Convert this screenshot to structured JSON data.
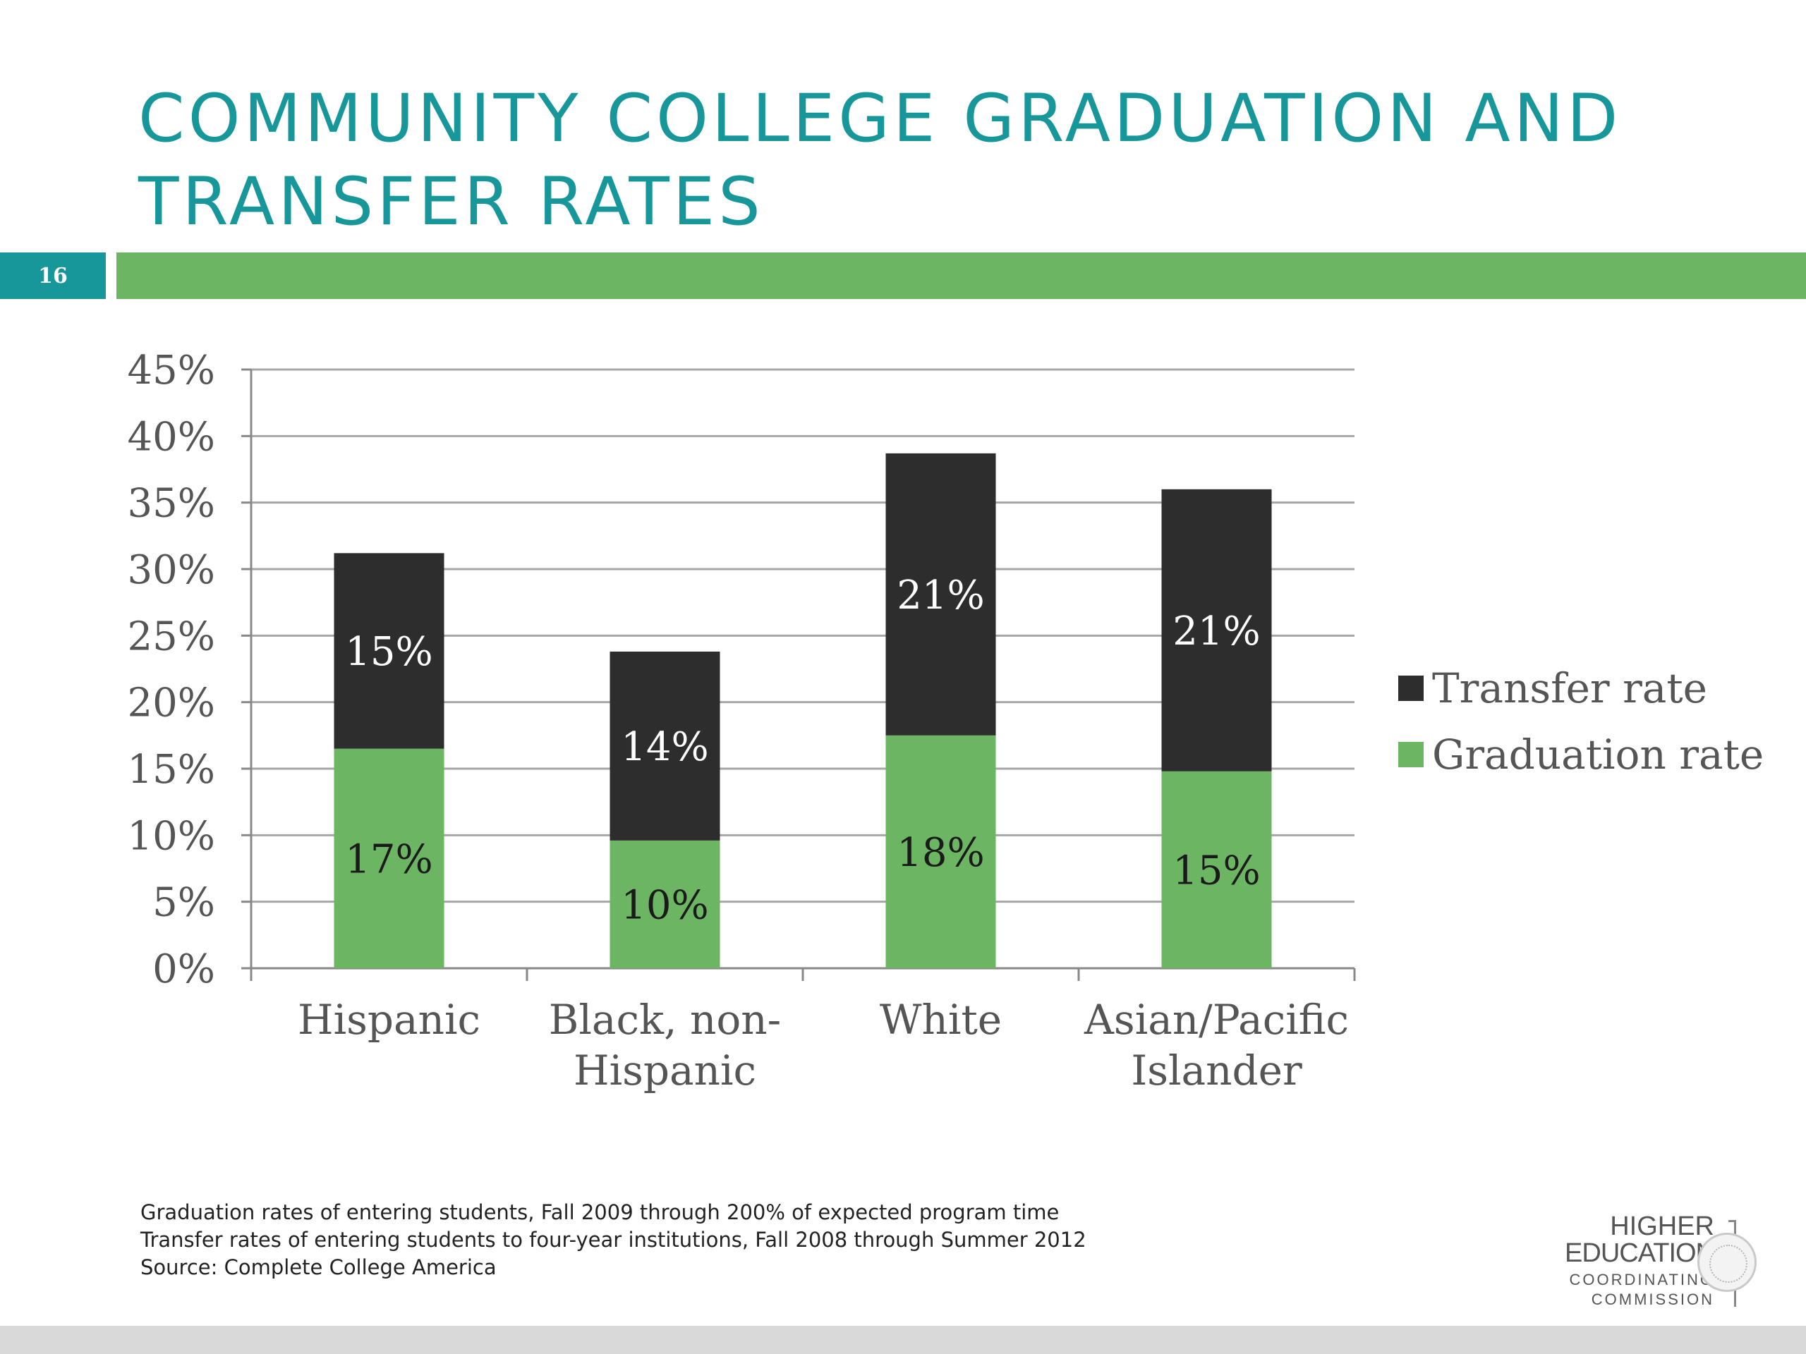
{
  "slide": {
    "title_line1": "COMMUNITY COLLEGE GRADUATION AND",
    "title_line2": "TRANSFER RATES",
    "page_number": "16",
    "accent_color": "#17979a",
    "bar_color": "#6bb563"
  },
  "chart_data": {
    "type": "bar",
    "stacked": true,
    "categories": [
      [
        "Hispanic"
      ],
      [
        "Black, non-",
        "Hispanic"
      ],
      [
        "White"
      ],
      [
        "Asian/Pacific",
        "Islander"
      ]
    ],
    "series": [
      {
        "name": "Graduation rate",
        "color": "#6bb563",
        "values": [
          16.5,
          9.6,
          17.5,
          14.8
        ],
        "labels": [
          "17%",
          "10%",
          "18%",
          "15%"
        ],
        "label_color": "#1a1a1a"
      },
      {
        "name": "Transfer rate",
        "color": "#2d2d2d",
        "values": [
          14.7,
          14.2,
          21.2,
          21.2
        ],
        "labels": [
          "15%",
          "14%",
          "21%",
          "21%"
        ],
        "label_color": "#ffffff"
      }
    ],
    "y_ticks": [
      "0%",
      "5%",
      "10%",
      "15%",
      "20%",
      "25%",
      "30%",
      "35%",
      "40%",
      "45%"
    ],
    "ylim": [
      0,
      45
    ],
    "grid": true,
    "legend_position": "right",
    "legend_order": [
      "Transfer rate",
      "Graduation rate"
    ]
  },
  "footnotes": [
    "Graduation rates of entering students, Fall 2009 through 200% of expected program time",
    "Transfer rates of entering students to four-year institutions, Fall 2008 through Summer 2012",
    "Source: Complete College America"
  ],
  "logo": {
    "line1": "HIGHER",
    "line2": "EDUCATION",
    "line3": "COORDINATING",
    "line4": "COMMISSION"
  }
}
